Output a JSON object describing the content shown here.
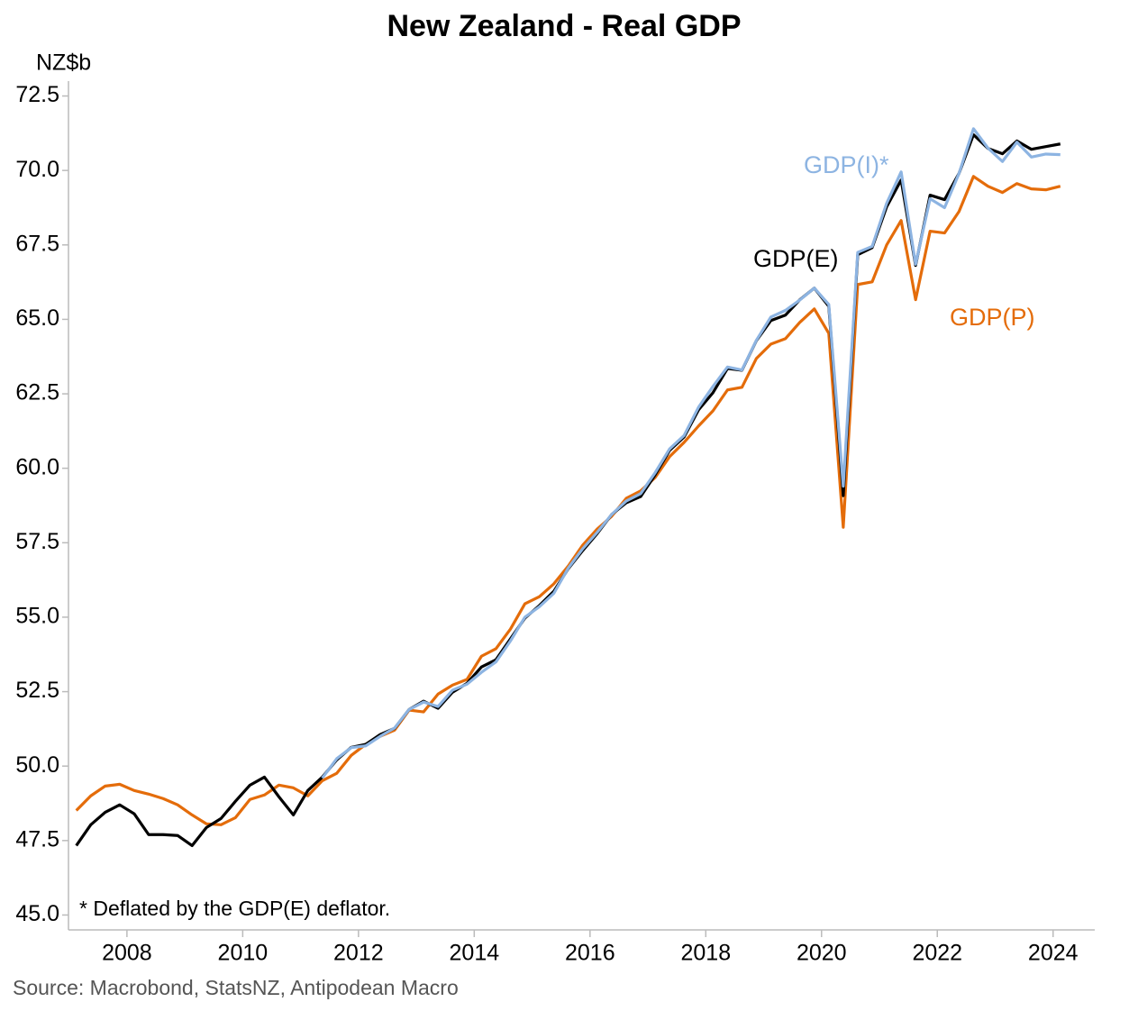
{
  "chart_data": {
    "type": "line",
    "title": "New Zealand - Real GDP",
    "y_label": "NZ$b",
    "footnote": "* Deflated by the GDP(E) deflator.",
    "source": "Source: Macrobond, StatsNZ, Antipodean Macro",
    "annotations": [
      {
        "text": "GDP(I)*",
        "color": "#8db4e2"
      },
      {
        "text": "GDP(E)",
        "color": "#000000"
      },
      {
        "text": "GDP(P)",
        "color": "#e46c0a"
      }
    ],
    "x": [
      2007.125,
      2007.375,
      2007.625,
      2007.875,
      2008.125,
      2008.375,
      2008.625,
      2008.875,
      2009.125,
      2009.375,
      2009.625,
      2009.875,
      2010.125,
      2010.375,
      2010.625,
      2010.875,
      2011.125,
      2011.375,
      2011.625,
      2011.875,
      2012.125,
      2012.375,
      2012.625,
      2012.875,
      2013.125,
      2013.375,
      2013.625,
      2013.875,
      2014.125,
      2014.375,
      2014.625,
      2014.875,
      2015.125,
      2015.375,
      2015.625,
      2015.875,
      2016.125,
      2016.375,
      2016.625,
      2016.875,
      2017.125,
      2017.375,
      2017.625,
      2017.875,
      2018.125,
      2018.375,
      2018.625,
      2018.875,
      2019.125,
      2019.375,
      2019.625,
      2019.875,
      2020.125,
      2020.375,
      2020.625,
      2020.875,
      2021.125,
      2021.375,
      2021.625,
      2021.875,
      2022.125,
      2022.375,
      2022.625,
      2022.875,
      2023.125,
      2023.375,
      2023.625,
      2023.875,
      2024.125
    ],
    "series": [
      {
        "name": "GDP(P)",
        "color": "#e46c0a",
        "values": [
          48.51,
          49.0,
          49.33,
          49.39,
          49.18,
          49.06,
          48.91,
          48.7,
          48.36,
          48.06,
          48.03,
          48.27,
          48.88,
          49.03,
          49.36,
          49.27,
          49.0,
          49.51,
          49.76,
          50.36,
          50.73,
          51.0,
          51.21,
          51.88,
          51.82,
          52.42,
          52.72,
          52.91,
          53.69,
          53.94,
          54.6,
          55.45,
          55.69,
          56.12,
          56.72,
          57.42,
          57.96,
          58.39,
          58.99,
          59.24,
          59.69,
          60.39,
          60.87,
          61.42,
          61.93,
          62.63,
          62.72,
          63.69,
          64.17,
          64.35,
          64.9,
          65.35,
          64.53,
          58.02,
          66.17,
          66.26,
          67.5,
          68.32,
          65.66,
          67.96,
          67.9,
          68.62,
          69.8,
          69.47,
          69.26,
          69.56,
          69.38,
          69.35,
          69.47
        ]
      },
      {
        "name": "GDP(E)",
        "color": "#000000",
        "values": [
          47.33,
          48.03,
          48.45,
          48.7,
          48.4,
          47.7,
          47.7,
          47.67,
          47.33,
          47.94,
          48.24,
          48.82,
          49.36,
          49.63,
          48.97,
          48.36,
          49.18,
          49.63,
          50.21,
          50.63,
          50.73,
          51.06,
          51.27,
          51.9,
          52.18,
          51.94,
          52.48,
          52.78,
          53.33,
          53.57,
          54.27,
          54.97,
          55.39,
          55.87,
          56.63,
          57.24,
          57.81,
          58.45,
          58.84,
          59.05,
          59.78,
          60.6,
          61.05,
          61.96,
          62.54,
          63.35,
          63.29,
          64.29,
          64.96,
          65.14,
          65.66,
          66.05,
          65.44,
          59.08,
          67.17,
          67.41,
          68.78,
          69.68,
          66.81,
          69.17,
          69.02,
          69.9,
          71.2,
          70.74,
          70.56,
          70.99,
          70.71,
          70.8,
          70.89
        ]
      },
      {
        "name": "GDP(I)*",
        "color": "#8db4e2",
        "values": [
          null,
          null,
          null,
          null,
          null,
          null,
          null,
          null,
          null,
          null,
          null,
          null,
          null,
          null,
          null,
          null,
          null,
          49.6,
          50.25,
          50.62,
          50.68,
          51.0,
          51.28,
          51.9,
          52.15,
          52.0,
          52.55,
          52.75,
          53.15,
          53.5,
          54.2,
          55.0,
          55.35,
          55.8,
          56.65,
          57.3,
          57.85,
          58.45,
          58.9,
          59.15,
          59.85,
          60.65,
          61.1,
          62.05,
          62.75,
          63.4,
          63.3,
          64.3,
          65.08,
          65.3,
          65.65,
          66.05,
          65.5,
          59.4,
          67.25,
          67.45,
          68.9,
          69.95,
          66.85,
          69.05,
          68.75,
          69.9,
          71.4,
          70.75,
          70.3,
          70.95,
          70.45,
          70.55,
          70.53
        ]
      }
    ],
    "xlim": [
      2006.99,
      2024.72
    ],
    "xticks": [
      2008,
      2010,
      2012,
      2014,
      2016,
      2018,
      2020,
      2022,
      2024
    ],
    "ylim": [
      44.5,
      73.0
    ],
    "yticks": [
      {
        "value": 45,
        "label": "45.0"
      },
      47.5,
      {
        "value": 50,
        "label": "50.0"
      },
      52.5,
      {
        "value": 55,
        "label": "55.0"
      },
      57.5,
      {
        "value": 60,
        "label": "60.0"
      },
      62.5,
      {
        "value": 65,
        "label": "65.0"
      },
      67.5,
      {
        "value": 70,
        "label": "70.0"
      },
      72.5
    ],
    "grid": false
  }
}
